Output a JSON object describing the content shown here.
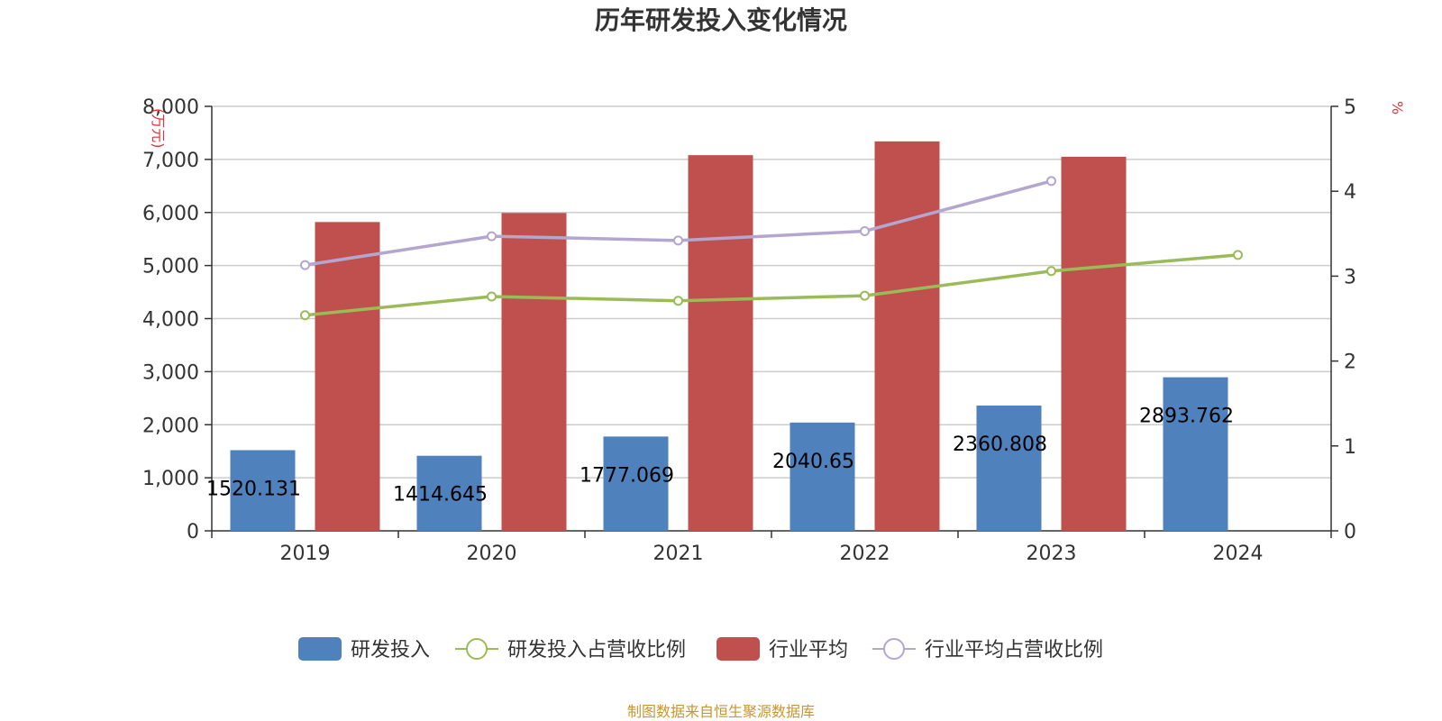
{
  "chart_data": {
    "type": "bar",
    "title": "历年研发投入变化情况",
    "categories": [
      "2019",
      "2020",
      "2021",
      "2022",
      "2023",
      "2024"
    ],
    "y_left": {
      "unit": "万元",
      "min": 0,
      "max": 8000,
      "ticks": [
        "0",
        "1,000",
        "2,000",
        "3,000",
        "4,000",
        "5,000",
        "6,000",
        "7,000",
        "8,000"
      ]
    },
    "y_right": {
      "unit": "%",
      "min": 0,
      "max": 5,
      "ticks": [
        "0",
        "1",
        "2",
        "3",
        "4",
        "5"
      ]
    },
    "grid": true,
    "legend_position": "bottom",
    "series": [
      {
        "name": "研发投入",
        "kind": "bar",
        "axis": "left",
        "color": "#4f81bd",
        "values": [
          1520.131,
          1414.645,
          1777.069,
          2040.65,
          2360.808,
          2893.762
        ],
        "labels": [
          "1520.131",
          "1414.645",
          "1777.069",
          "2040.65",
          "2360.808",
          "2893.762"
        ]
      },
      {
        "name": "研发投入占营收比例",
        "kind": "line",
        "axis": "right",
        "color": "#9bbb59",
        "values": [
          2.54,
          2.76,
          2.71,
          2.77,
          3.06,
          3.25
        ]
      },
      {
        "name": "行业平均",
        "kind": "bar",
        "axis": "left",
        "color": "#c0504d",
        "values": [
          5820,
          5990,
          7080,
          7340,
          7050,
          null
        ]
      },
      {
        "name": "行业平均占营收比例",
        "kind": "line",
        "axis": "right",
        "color": "#b3a6cf",
        "values": [
          3.13,
          3.47,
          3.42,
          3.53,
          4.12,
          null
        ]
      }
    ],
    "source": "制图数据来自恒生聚源数据库"
  }
}
